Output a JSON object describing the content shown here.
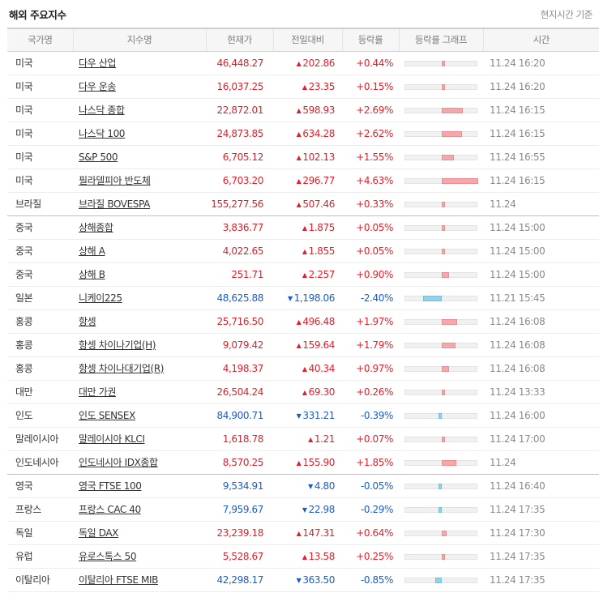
{
  "header": {
    "title": "해외 주요지수",
    "note": "현지시간 기준"
  },
  "columns": [
    "국가명",
    "지수명",
    "현재가",
    "전일대비",
    "등락률",
    "등락률 그래프",
    "시간"
  ],
  "colors": {
    "up": "#e0202a",
    "down": "#1a5cc8",
    "bar_up": "#f6a7aa",
    "bar_down": "#8fd3ee"
  },
  "rows": [
    {
      "country": "미국",
      "name": "다우 산업",
      "price": "46,448.27",
      "change": "202.86",
      "rate": "+0.44%",
      "time": "11.24 16:20",
      "dir": "up",
      "rate_value": 0.44
    },
    {
      "country": "미국",
      "name": "다우 운송",
      "price": "16,037.25",
      "change": "23.35",
      "rate": "+0.15%",
      "time": "11.24 16:20",
      "dir": "up",
      "rate_value": 0.15
    },
    {
      "country": "미국",
      "name": "나스닥 종합",
      "price": "22,872.01",
      "change": "598.93",
      "rate": "+2.69%",
      "time": "11.24 16:15",
      "dir": "up",
      "rate_value": 2.69
    },
    {
      "country": "미국",
      "name": "나스닥 100",
      "price": "24,873.85",
      "change": "634.28",
      "rate": "+2.62%",
      "time": "11.24 16:15",
      "dir": "up",
      "rate_value": 2.62
    },
    {
      "country": "미국",
      "name": "S&P 500",
      "price": "6,705.12",
      "change": "102.13",
      "rate": "+1.55%",
      "time": "11.24 16:55",
      "dir": "up",
      "rate_value": 1.55
    },
    {
      "country": "미국",
      "name": "필라델피아 반도체",
      "price": "6,703.20",
      "change": "296.77",
      "rate": "+4.63%",
      "time": "11.24 16:15",
      "dir": "up",
      "rate_value": 4.63
    },
    {
      "country": "브라질",
      "name": "브라질 BOVESPA",
      "price": "155,277.56",
      "change": "507.46",
      "rate": "+0.33%",
      "time": "11.24",
      "dir": "up",
      "rate_value": 0.33,
      "group_end": true
    },
    {
      "country": "중국",
      "name": "상해종합",
      "price": "3,836.77",
      "change": "1.875",
      "rate": "+0.05%",
      "time": "11.24 15:00",
      "dir": "up",
      "rate_value": 0.05
    },
    {
      "country": "중국",
      "name": "상해 A",
      "price": "4,022.65",
      "change": "1.855",
      "rate": "+0.05%",
      "time": "11.24 15:00",
      "dir": "up",
      "rate_value": 0.05
    },
    {
      "country": "중국",
      "name": "상해 B",
      "price": "251.71",
      "change": "2.257",
      "rate": "+0.90%",
      "time": "11.24 15:00",
      "dir": "up",
      "rate_value": 0.9
    },
    {
      "country": "일본",
      "name": "니케이225",
      "price": "48,625.88",
      "change": "1,198.06",
      "rate": "-2.40%",
      "time": "11.21 15:45",
      "dir": "down",
      "rate_value": -2.4
    },
    {
      "country": "홍콩",
      "name": "항셍",
      "price": "25,716.50",
      "change": "496.48",
      "rate": "+1.97%",
      "time": "11.24 16:08",
      "dir": "up",
      "rate_value": 1.97
    },
    {
      "country": "홍콩",
      "name": "항셍 차이나기업(H)",
      "price": "9,079.42",
      "change": "159.64",
      "rate": "+1.79%",
      "time": "11.24 16:08",
      "dir": "up",
      "rate_value": 1.79
    },
    {
      "country": "홍콩",
      "name": "항셍 차이나대기업(R)",
      "price": "4,198.37",
      "change": "40.34",
      "rate": "+0.97%",
      "time": "11.24 16:08",
      "dir": "up",
      "rate_value": 0.97
    },
    {
      "country": "대만",
      "name": "대만 가권",
      "price": "26,504.24",
      "change": "69.30",
      "rate": "+0.26%",
      "time": "11.24 13:33",
      "dir": "up",
      "rate_value": 0.26
    },
    {
      "country": "인도",
      "name": "인도 SENSEX",
      "price": "84,900.71",
      "change": "331.21",
      "rate": "-0.39%",
      "time": "11.24 16:00",
      "dir": "down",
      "rate_value": -0.39
    },
    {
      "country": "말레이시아",
      "name": "말레이시아 KLCI",
      "price": "1,618.78",
      "change": "1.21",
      "rate": "+0.07%",
      "time": "11.24 17:00",
      "dir": "up",
      "rate_value": 0.07
    },
    {
      "country": "인도네시아",
      "name": "인도네시아 IDX종합",
      "price": "8,570.25",
      "change": "155.90",
      "rate": "+1.85%",
      "time": "11.24",
      "dir": "up",
      "rate_value": 1.85,
      "group_end": true
    },
    {
      "country": "영국",
      "name": "영국 FTSE 100",
      "price": "9,534.91",
      "change": "4.80",
      "rate": "-0.05%",
      "time": "11.24 16:40",
      "dir": "down",
      "rate_value": -0.05
    },
    {
      "country": "프랑스",
      "name": "프랑스 CAC 40",
      "price": "7,959.67",
      "change": "22.98",
      "rate": "-0.29%",
      "time": "11.24 17:35",
      "dir": "down",
      "rate_value": -0.29
    },
    {
      "country": "독일",
      "name": "독일 DAX",
      "price": "23,239.18",
      "change": "147.31",
      "rate": "+0.64%",
      "time": "11.24 17:30",
      "dir": "up",
      "rate_value": 0.64
    },
    {
      "country": "유럽",
      "name": "유로스톡스 50",
      "price": "5,528.67",
      "change": "13.58",
      "rate": "+0.25%",
      "time": "11.24 17:35",
      "dir": "up",
      "rate_value": 0.25
    },
    {
      "country": "이탈리아",
      "name": "이탈리아 FTSE MIB",
      "price": "42,298.17",
      "change": "363.50",
      "rate": "-0.85%",
      "time": "11.24 17:35",
      "dir": "down",
      "rate_value": -0.85
    }
  ]
}
